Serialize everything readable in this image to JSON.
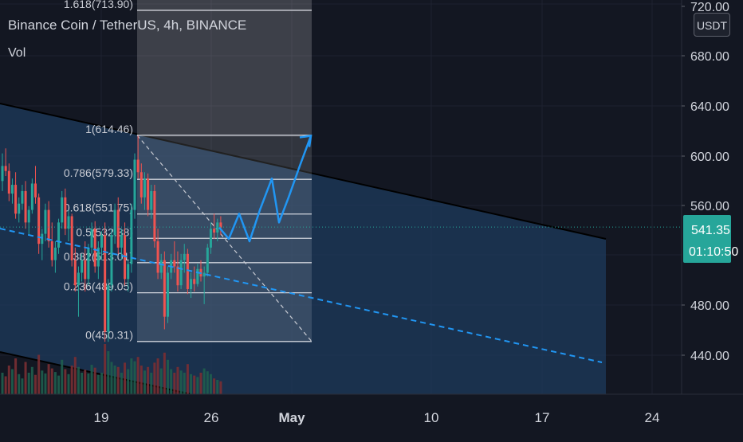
{
  "header": {
    "symbol_title": "Binance Coin / TetherUS, 4h, BINANCE",
    "indicator": "Vol",
    "currency_button": "USDT"
  },
  "price_scale": {
    "ticks": [
      "720.00",
      "680.00",
      "640.00",
      "600.00",
      "560.00",
      "480.00",
      "440.00"
    ],
    "current_price": "541.35",
    "countdown": "01:10:50"
  },
  "time_axis": {
    "ticks": [
      "19",
      "26",
      "May",
      "10",
      "17",
      "24"
    ]
  },
  "fibonacci": {
    "levels": [
      {
        "label": "1.618(713.90)",
        "value": 713.9
      },
      {
        "label": "1(614.46)",
        "value": 614.46
      },
      {
        "label": "0.786(579.33)",
        "value": 579.33
      },
      {
        "label": "0.618(551.75)",
        "value": 551.75
      },
      {
        "label": "0.5(532.38)",
        "value": 532.38
      },
      {
        "label": "0.382(513.01)",
        "value": 513.01
      },
      {
        "label": "0.236(489.05)",
        "value": 489.05
      },
      {
        "label": "0(450.31)",
        "value": 450.31
      }
    ]
  },
  "colors": {
    "background": "#131722",
    "channel_fill": "#1d3b5c",
    "up_candle": "#26a69a",
    "down_candle": "#ef5350",
    "projection": "#2196f3",
    "fib_line": "#d1d4dc",
    "price_tag": "#26a69a"
  },
  "chart_data": {
    "type": "candlestick",
    "title": "Binance Coin / TetherUS, 4h, BINANCE",
    "ylim": [
      412,
      728
    ],
    "current_price": 541.35,
    "projection_path": [
      541,
      532,
      552,
      530,
      555,
      580,
      545,
      565,
      590,
      614
    ],
    "candles": [
      [
        578,
        600,
        570,
        590
      ],
      [
        590,
        604,
        582,
        586
      ],
      [
        586,
        592,
        562,
        568
      ],
      [
        568,
        580,
        560,
        575
      ],
      [
        575,
        585,
        548,
        552
      ],
      [
        552,
        565,
        545,
        560
      ],
      [
        560,
        575,
        555,
        570
      ],
      [
        570,
        578,
        540,
        545
      ],
      [
        545,
        558,
        535,
        555
      ],
      [
        555,
        580,
        552,
        576
      ],
      [
        576,
        590,
        560,
        565
      ],
      [
        565,
        568,
        520,
        528
      ],
      [
        528,
        540,
        515,
        536
      ],
      [
        536,
        560,
        530,
        555
      ],
      [
        555,
        562,
        525,
        530
      ],
      [
        530,
        545,
        510,
        515
      ],
      [
        515,
        530,
        505,
        525
      ],
      [
        525,
        548,
        520,
        545
      ],
      [
        545,
        570,
        540,
        565
      ],
      [
        565,
        572,
        535,
        540
      ],
      [
        540,
        555,
        530,
        550
      ],
      [
        550,
        552,
        510,
        515
      ],
      [
        515,
        525,
        490,
        495
      ],
      [
        495,
        510,
        470,
        505
      ],
      [
        505,
        520,
        498,
        515
      ],
      [
        515,
        530,
        490,
        500
      ],
      [
        500,
        528,
        495,
        525
      ],
      [
        525,
        545,
        520,
        540
      ],
      [
        540,
        546,
        505,
        510
      ],
      [
        510,
        530,
        500,
        525
      ],
      [
        525,
        538,
        515,
        535
      ],
      [
        535,
        545,
        450,
        458
      ],
      [
        458,
        500,
        450,
        495
      ],
      [
        495,
        540,
        490,
        535
      ],
      [
        535,
        560,
        528,
        555
      ],
      [
        555,
        565,
        520,
        525
      ],
      [
        525,
        540,
        515,
        535
      ],
      [
        535,
        545,
        495,
        500
      ],
      [
        500,
        515,
        490,
        512
      ],
      [
        512,
        560,
        505,
        555
      ],
      [
        555,
        600,
        548,
        595
      ],
      [
        595,
        614,
        580,
        585
      ],
      [
        585,
        592,
        560,
        565
      ],
      [
        565,
        585,
        555,
        580
      ],
      [
        580,
        584,
        550,
        555
      ],
      [
        555,
        575,
        548,
        570
      ],
      [
        570,
        575,
        525,
        530
      ],
      [
        530,
        540,
        500,
        505
      ],
      [
        505,
        520,
        500,
        515
      ],
      [
        515,
        522,
        460,
        470
      ],
      [
        470,
        510,
        465,
        505
      ],
      [
        505,
        520,
        500,
        515
      ],
      [
        515,
        530,
        505,
        510
      ],
      [
        510,
        522,
        490,
        495
      ],
      [
        495,
        520,
        492,
        515
      ],
      [
        515,
        528,
        505,
        520
      ],
      [
        520,
        524,
        488,
        492
      ],
      [
        492,
        505,
        485,
        500
      ],
      [
        500,
        510,
        490,
        496
      ],
      [
        496,
        512,
        494,
        508
      ],
      [
        508,
        515,
        498,
        502
      ],
      [
        502,
        510,
        480,
        505
      ],
      [
        505,
        528,
        502,
        525
      ],
      [
        525,
        545,
        520,
        540
      ],
      [
        540,
        552,
        532,
        537
      ],
      [
        537,
        548,
        530,
        545
      ],
      [
        545,
        550,
        535,
        541
      ]
    ],
    "volumes": [
      30,
      25,
      40,
      35,
      50,
      28,
      22,
      45,
      30,
      38,
      27,
      55,
      33,
      29,
      42,
      36,
      31,
      26,
      48,
      35,
      28,
      40,
      52,
      38,
      30,
      34,
      29,
      41,
      37,
      27,
      30,
      70,
      60,
      45,
      40,
      38,
      30,
      44,
      35,
      50,
      46,
      52,
      40,
      33,
      38,
      30,
      44,
      50,
      36,
      58,
      48,
      35,
      30,
      38,
      33,
      30,
      42,
      28,
      26,
      24,
      30,
      36,
      32,
      28,
      22,
      20,
      18
    ]
  }
}
